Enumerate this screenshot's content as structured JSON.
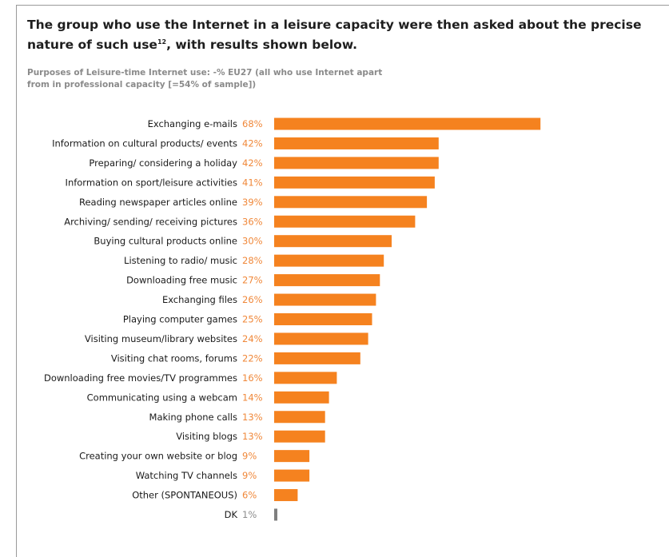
{
  "intro": {
    "text": "The group who use the Internet in a leisure capacity were then asked about the precise nature of such use",
    "footnote": "12",
    "text2": ", with results shown below."
  },
  "chart_data": {
    "type": "bar",
    "orientation": "horizontal",
    "subtitle_line1": "Purposes of Leisure-time Internet use: -% EU27 (all who use Internet apart",
    "subtitle_line2": "from in professional capacity [=54% of sample])",
    "categories": [
      "Exchanging e-mails",
      "Information on cultural products/ events",
      "Preparing/ considering a holiday",
      "Information on sport/leisure activities",
      "Reading newspaper articles online",
      "Archiving/ sending/ receiving pictures",
      "Buying cultural products online",
      "Listening to radio/ music",
      "Downloading free music",
      "Exchanging files",
      "Playing computer games",
      "Visiting museum/library websites",
      "Visiting chat rooms, forums",
      "Downloading free movies/TV programmes",
      "Communicating using a webcam",
      "Making phone calls",
      "Visiting blogs",
      "Creating your own website or blog",
      "Watching TV channels",
      "Other (SPONTANEOUS)",
      "DK"
    ],
    "values": [
      68,
      42,
      42,
      41,
      39,
      36,
      30,
      28,
      27,
      26,
      25,
      24,
      22,
      16,
      14,
      13,
      13,
      9,
      9,
      6,
      1
    ],
    "value_labels": [
      "68%",
      "42%",
      "42%",
      "41%",
      "39%",
      "36%",
      "30%",
      "28%",
      "27%",
      "26%",
      "25%",
      "24%",
      "22%",
      "16%",
      "14%",
      "13%",
      "13%",
      "9%",
      "9%",
      "6%",
      "1%"
    ],
    "colors": {
      "bar": "#f5821f",
      "bar_dk": "#7f7f7f",
      "pct_text": "#f0883a",
      "pct_text_dk": "#8c8c8c"
    }
  }
}
